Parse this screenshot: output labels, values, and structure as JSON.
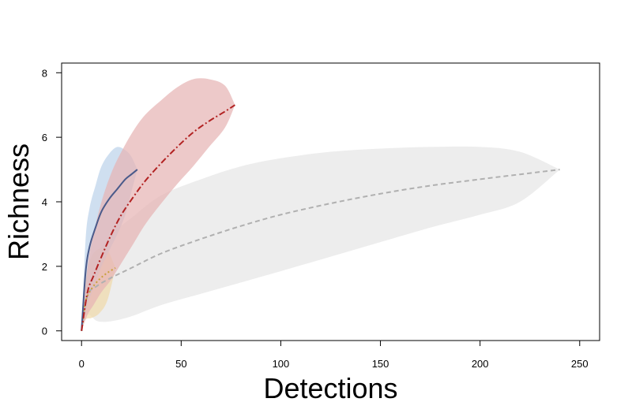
{
  "chart_data": {
    "type": "line",
    "title": "",
    "xlabel": "Detections",
    "ylabel": "Richness",
    "xlim": [
      -10,
      260
    ],
    "ylim": [
      -0.3,
      8.3
    ],
    "xticks": [
      0,
      50,
      100,
      150,
      200,
      250
    ],
    "yticks": [
      0,
      2,
      4,
      6,
      8
    ],
    "grid": false,
    "legend": "none",
    "series": [
      {
        "color": "#b0b0b0",
        "fill": "#e6e6e6",
        "line_style": "dashed",
        "x": [
          0,
          3,
          8,
          15,
          25,
          40,
          60,
          80,
          100,
          125,
          150,
          175,
          200,
          220,
          240
        ],
        "y": [
          0,
          1.1,
          1.4,
          1.65,
          1.95,
          2.4,
          2.85,
          3.25,
          3.6,
          3.95,
          4.25,
          4.5,
          4.7,
          4.85,
          5.0
        ],
        "upper": [
          0,
          1.6,
          2.4,
          3.0,
          3.5,
          4.2,
          4.7,
          5.1,
          5.35,
          5.55,
          5.65,
          5.7,
          5.7,
          5.55,
          5.0
        ],
        "lower": [
          0,
          0.5,
          0.3,
          0.3,
          0.45,
          0.8,
          1.15,
          1.5,
          1.85,
          2.3,
          2.75,
          3.2,
          3.6,
          4.0,
          5.0
        ]
      },
      {
        "color": "#c8a03c",
        "fill": "#f0d9aa",
        "line_style": "dotted",
        "x": [
          0,
          2,
          5,
          9,
          13,
          17
        ],
        "y": [
          0,
          0.9,
          1.3,
          1.6,
          1.8,
          1.95
        ],
        "upper": [
          0,
          1.6,
          2.3,
          2.55,
          2.5,
          1.95
        ],
        "lower": [
          0,
          0.35,
          0.4,
          0.55,
          0.95,
          1.95
        ]
      },
      {
        "color": "#4a5a8a",
        "fill": "#bcd3ea",
        "line_style": "solid",
        "x": [
          0,
          2,
          4,
          7,
          10,
          14,
          18,
          22,
          25,
          28
        ],
        "y": [
          0,
          1.8,
          2.6,
          3.2,
          3.7,
          4.1,
          4.4,
          4.7,
          4.85,
          5.0
        ],
        "upper": [
          0,
          2.8,
          3.8,
          4.5,
          5.1,
          5.5,
          5.7,
          5.6,
          5.4,
          5.0
        ],
        "lower": [
          0,
          0.6,
          1.0,
          1.5,
          2.0,
          2.5,
          3.0,
          3.6,
          4.3,
          5.0
        ]
      },
      {
        "color": "#b22222",
        "fill": "#e6b4b4",
        "line_style": "dashdot",
        "x": [
          0,
          3,
          6,
          10,
          15,
          20,
          26,
          32,
          40,
          48,
          56,
          64,
          72,
          77
        ],
        "y": [
          0,
          1.2,
          1.7,
          2.3,
          3.0,
          3.6,
          4.15,
          4.65,
          5.2,
          5.7,
          6.15,
          6.5,
          6.8,
          7.0
        ],
        "upper": [
          0,
          2.0,
          3.0,
          4.0,
          4.9,
          5.55,
          6.2,
          6.7,
          7.15,
          7.55,
          7.8,
          7.8,
          7.6,
          7.0
        ],
        "lower": [
          0,
          0.5,
          0.8,
          1.2,
          1.6,
          2.1,
          2.7,
          3.3,
          3.95,
          4.55,
          5.1,
          5.7,
          6.3,
          7.0
        ]
      }
    ]
  }
}
